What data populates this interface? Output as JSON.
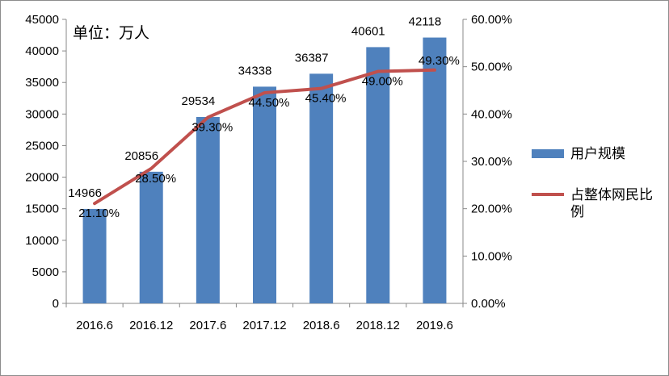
{
  "chart_data": {
    "type": "bar",
    "categories": [
      "2016.6",
      "2016.12",
      "2017.6",
      "2017.12",
      "2018.6",
      "2018.12",
      "2019.6"
    ],
    "unit_label": "单位：万人",
    "series": [
      {
        "name": "用户规模",
        "type": "bar",
        "axis": "left",
        "color": "#4f81bd",
        "values": [
          14966,
          20856,
          29534,
          34338,
          36387,
          40601,
          42118
        ],
        "labels": [
          "14966",
          "20856",
          "29534",
          "34338",
          "36387",
          "40601",
          "42118"
        ]
      },
      {
        "name": "占整体网民比例",
        "type": "line",
        "axis": "right",
        "color": "#c0504d",
        "values": [
          21.1,
          28.5,
          39.3,
          44.5,
          45.4,
          49.0,
          49.3
        ],
        "labels": [
          "21.10%",
          "28.50%",
          "39.30%",
          "44.50%",
          "45.40%",
          "49.00%",
          "49.30%"
        ]
      }
    ],
    "y_left": {
      "range": [
        0,
        45000
      ],
      "ticks": [
        "0",
        "5000",
        "10000",
        "15000",
        "20000",
        "25000",
        "30000",
        "35000",
        "40000",
        "45000"
      ]
    },
    "y_right": {
      "range": [
        0,
        60
      ],
      "ticks": [
        "0.00%",
        "10.00%",
        "20.00%",
        "30.00%",
        "40.00%",
        "50.00%",
        "60.00%"
      ]
    },
    "grid": false,
    "legend": {
      "position": "right",
      "items": [
        {
          "label": "用户规模",
          "color": "#4f81bd",
          "kind": "bar"
        },
        {
          "label_lines": [
            "占整体网民比",
            "例"
          ],
          "color": "#c0504d",
          "kind": "line"
        }
      ]
    }
  }
}
